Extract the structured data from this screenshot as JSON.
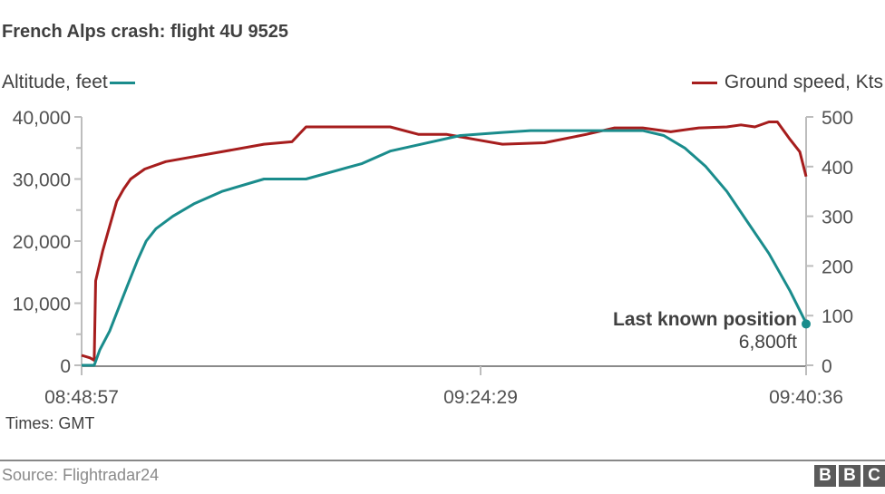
{
  "title": "French Alps crash: flight 4U 9525",
  "legend": {
    "left": {
      "label": "Altitude, feet",
      "color": "#1a8c8c"
    },
    "right": {
      "label": "Ground speed, Kts",
      "color": "#a61d1d"
    }
  },
  "axes": {
    "left_ticks": [
      "40,000",
      "30,000",
      "20,000",
      "10,000",
      "0"
    ],
    "right_ticks": [
      "500",
      "400",
      "300",
      "200",
      "100",
      "0"
    ],
    "x_ticks": [
      "08:48:57",
      "09:24:29",
      "09:40:36"
    ]
  },
  "annotation": {
    "title": "Last known position",
    "value": "6,800ft"
  },
  "times_note": "Times: GMT",
  "source": "Source: Flightradar24",
  "brand": [
    "B",
    "B",
    "C"
  ],
  "chart_data": {
    "type": "line",
    "title": "French Alps crash: flight 4U 9525",
    "xlabel": "Times: GMT",
    "x_ticks": [
      "08:48:57",
      "09:24:29",
      "09:40:36"
    ],
    "x_range_minutes": [
      0,
      51.65
    ],
    "series": [
      {
        "name": "Altitude, feet",
        "axis": "left",
        "color": "#1a8c8c",
        "ylim": [
          0,
          40000
        ],
        "x_minutes": [
          0,
          0.9,
          1.3,
          2.0,
          2.6,
          3.3,
          4.0,
          4.6,
          5.3,
          6.5,
          8.0,
          10.0,
          13.0,
          16.0,
          20.0,
          22.0,
          24.0,
          27.0,
          30.0,
          32.0,
          34.0,
          36.0,
          38.0,
          40.0,
          41.5,
          43.0,
          44.5,
          46.0,
          47.5,
          49.0,
          50.5,
          51.65
        ],
        "values": [
          0,
          0,
          2500,
          5500,
          9000,
          13000,
          17000,
          20000,
          22000,
          24000,
          26000,
          28000,
          30000,
          30000,
          32500,
          34500,
          35500,
          37000,
          37500,
          37800,
          37800,
          37800,
          37800,
          37800,
          37000,
          35000,
          32000,
          28000,
          23000,
          18000,
          12000,
          6800
        ]
      },
      {
        "name": "Ground speed, Kts",
        "axis": "right",
        "color": "#a61d1d",
        "ylim": [
          0,
          500
        ],
        "x_minutes": [
          0,
          0.6,
          0.9,
          1.0,
          1.5,
          2.0,
          2.5,
          3.0,
          3.5,
          4.5,
          6.0,
          8.0,
          10.0,
          13.0,
          15.0,
          16.0,
          18.0,
          20.0,
          22.0,
          24.0,
          26.0,
          28.0,
          30.0,
          33.0,
          36.0,
          38.0,
          40.0,
          42.0,
          44.0,
          46.0,
          47.0,
          48.0,
          49.0,
          49.6,
          50.5,
          51.2,
          51.65
        ],
        "values": [
          20,
          15,
          10,
          170,
          230,
          280,
          330,
          355,
          375,
          395,
          410,
          420,
          430,
          445,
          450,
          480,
          480,
          480,
          480,
          465,
          465,
          455,
          445,
          448,
          465,
          478,
          478,
          470,
          478,
          480,
          484,
          480,
          490,
          490,
          455,
          430,
          380
        ]
      }
    ],
    "annotations": [
      {
        "text": "Last known position",
        "subtext": "6,800ft",
        "x_minutes": 51.65,
        "value": 6800
      }
    ],
    "grid": false,
    "legend_position": "top"
  }
}
